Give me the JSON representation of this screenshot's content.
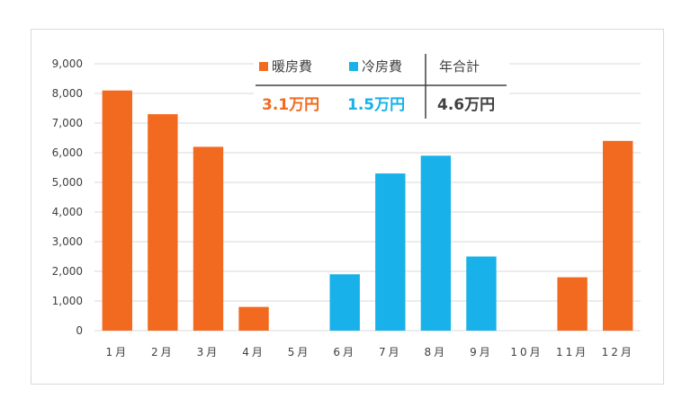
{
  "chart_data": {
    "type": "bar",
    "categories": [
      "1月",
      "2月",
      "3月",
      "4月",
      "5月",
      "6月",
      "7月",
      "8月",
      "9月",
      "10月",
      "11月",
      "12月"
    ],
    "values": [
      8100,
      7300,
      6200,
      800,
      0,
      1900,
      5300,
      5900,
      2500,
      0,
      1800,
      6400
    ],
    "bar_series": [
      "heating",
      "heating",
      "heating",
      "heating",
      "heating",
      "cooling",
      "cooling",
      "cooling",
      "cooling",
      "cooling",
      "heating",
      "heating"
    ],
    "ylim": [
      0,
      9000
    ],
    "yticks": [
      "0",
      "1,000",
      "2,000",
      "3,000",
      "4,000",
      "5,000",
      "6,000",
      "7,000",
      "8,000",
      "9,000"
    ],
    "grid": true,
    "legend": {
      "heating_label": "暖房費",
      "cooling_label": "冷房費",
      "total_label": "年合計"
    },
    "totals": {
      "heating": "3.1万円",
      "cooling": "1.5万円",
      "total": "4.6万円"
    },
    "colors": {
      "heating": "#f26a1f",
      "cooling": "#18b1ea",
      "grid": "#d9d9d9",
      "text": "#404040"
    }
  }
}
